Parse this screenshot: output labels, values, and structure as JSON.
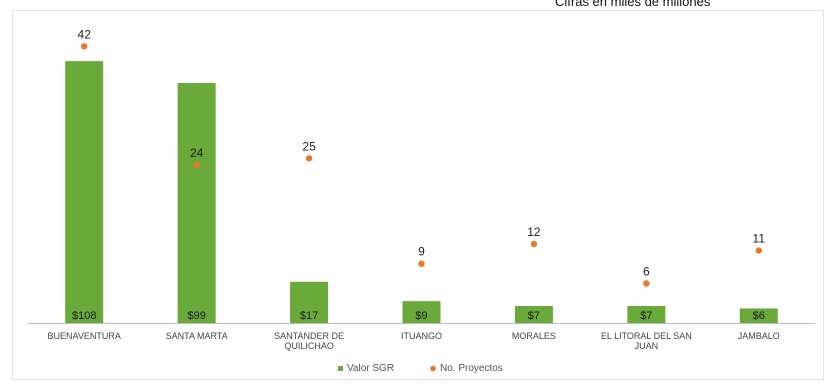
{
  "note": "Cifras en miles de millones",
  "chart_data": {
    "type": "bar",
    "title": "",
    "xlabel": "",
    "ylabel": "",
    "categories": [
      [
        "BUENAVENTURA"
      ],
      [
        "SANTA MARTA"
      ],
      [
        "SANTANDER DE",
        "QUILICHAO"
      ],
      [
        "ITUANGO"
      ],
      [
        "MORALES"
      ],
      [
        "EL LITORAL DEL SAN",
        "JUAN"
      ],
      [
        "JAMBALO"
      ]
    ],
    "series": [
      {
        "name": "Valor SGR",
        "type": "bar",
        "color": "#6aaa3a",
        "values": [
          108,
          99,
          17,
          9,
          7,
          7,
          6
        ],
        "labels": [
          "$108",
          "$99",
          "$17",
          "$9",
          "$7",
          "$7",
          "$6"
        ]
      },
      {
        "name": "No. Proyectos",
        "type": "marker",
        "color": "#e8782a",
        "values": [
          42,
          24,
          25,
          9,
          12,
          6,
          11
        ],
        "labels": [
          "42",
          "24",
          "25",
          "9",
          "12",
          "6",
          "11"
        ]
      }
    ],
    "ylim_bars": [
      0,
      120
    ],
    "ylim_markers": [
      0,
      46
    ],
    "legend_position": "bottom-center",
    "grid": false
  }
}
